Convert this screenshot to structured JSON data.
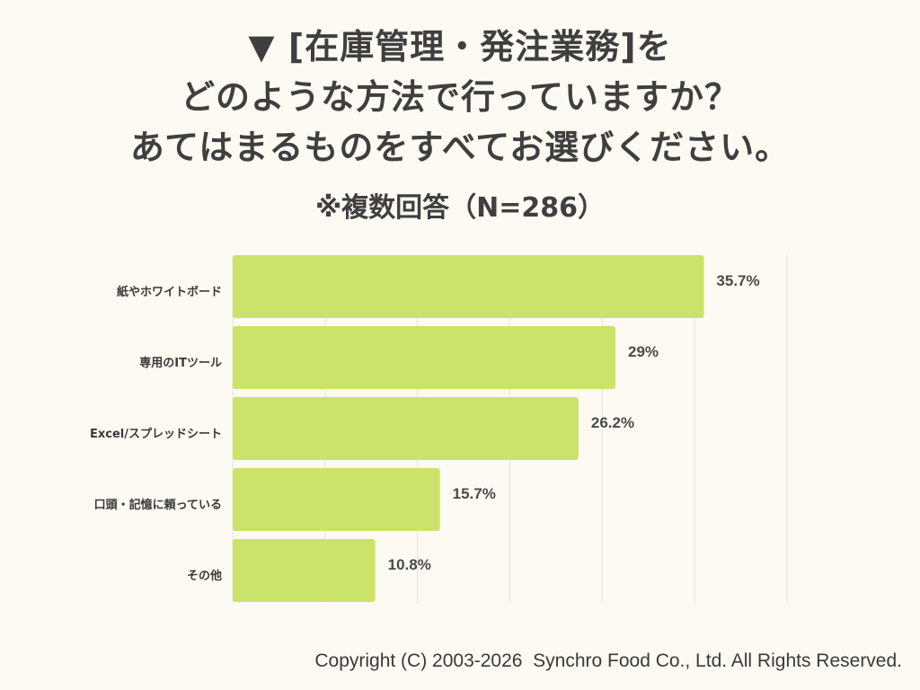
{
  "title_lines": [
    "▼ [在庫管理・発注業務]を",
    "どのような方法で行っていますか？",
    "あてはまるものをすべてお選びください。"
  ],
  "subtitle": "※複数回答（N=286）",
  "copyright": "Copyright (C) 2003-2026  Synchro Food Co., Ltd. All Rights Reserved.",
  "colors": {
    "background": "#fcfaf2",
    "bar": "#cbe26b",
    "grid": "#e6e4dc",
    "text": "#3f3f3f"
  },
  "chart_data": {
    "type": "bar",
    "orientation": "horizontal",
    "categories": [
      "紙やホワイトボード",
      "専用のITツール",
      "Excel/スプレッドシート",
      "口頭・記憶に頼っている",
      "その他"
    ],
    "values": [
      35.7,
      29,
      26.2,
      15.7,
      10.8
    ],
    "value_labels": [
      "35.7%",
      "29%",
      "26.2%",
      "15.7%",
      "10.8%"
    ],
    "xlim": [
      0,
      42
    ],
    "grid": true
  }
}
